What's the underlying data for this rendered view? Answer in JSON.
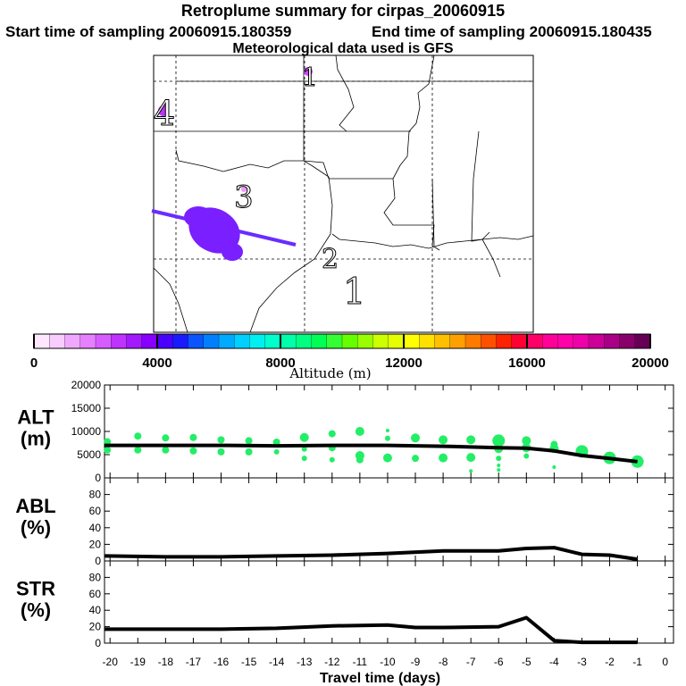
{
  "header": {
    "title": "Retroplume summary for cirpas_20060915",
    "start_label": "Start time of sampling 20060915.180359",
    "end_label": "End time of sampling 20060915.180435",
    "met_label": "Meteorological data used is GFS"
  },
  "map": {
    "day_markers": [
      "1",
      "2",
      "3",
      "4",
      "1"
    ],
    "plume_color": "#7a1fff",
    "track_color": "#6a2cff"
  },
  "colorbar": {
    "title": "Altitude (m)",
    "tick_labels": [
      "0",
      "4000",
      "8000",
      "12000",
      "16000",
      "20000"
    ],
    "colors": [
      "#ffe6ff",
      "#f8ccff",
      "#f0a8ff",
      "#e680ff",
      "#d75cff",
      "#bf33ff",
      "#a31aff",
      "#8800ff",
      "#4a00ff",
      "#1a1aff",
      "#0a55ff",
      "#0080ff",
      "#00aaff",
      "#00d0ff",
      "#00f0f0",
      "#00ffcc",
      "#00ffaa",
      "#00ff80",
      "#00ff55",
      "#33ff33",
      "#66ff00",
      "#99ff00",
      "#ccff00",
      "#e6ff00",
      "#ffff00",
      "#ffe000",
      "#ffc000",
      "#ffa000",
      "#ff7a00",
      "#ff5000",
      "#ff2200",
      "#ff0033",
      "#ff0066",
      "#ff0099",
      "#ff00aa",
      "#ee00aa",
      "#cc0099",
      "#aa0088",
      "#88006a",
      "#660055"
    ]
  },
  "chart_data": [
    {
      "type": "scatter",
      "title": "ALT (m)",
      "ylabel_line1": "ALT",
      "ylabel_line2": "(m)",
      "ylim": [
        0,
        20000
      ],
      "yticks": [
        "0",
        "5000",
        "10000",
        "15000",
        "20000"
      ],
      "marker_color": "#22ee66",
      "line_color": "#000000",
      "points": [
        {
          "x": -20.1,
          "y": 7800,
          "r": 4
        },
        {
          "x": -20.1,
          "y": 6000,
          "r": 4
        },
        {
          "x": -19,
          "y": 9000,
          "r": 4
        },
        {
          "x": -19,
          "y": 6000,
          "r": 4
        },
        {
          "x": -18,
          "y": 8600,
          "r": 4
        },
        {
          "x": -18,
          "y": 6000,
          "r": 4
        },
        {
          "x": -17,
          "y": 8700,
          "r": 4
        },
        {
          "x": -17,
          "y": 5800,
          "r": 4
        },
        {
          "x": -16,
          "y": 8200,
          "r": 4
        },
        {
          "x": -16,
          "y": 5600,
          "r": 4
        },
        {
          "x": -15,
          "y": 8000,
          "r": 4
        },
        {
          "x": -15,
          "y": 5600,
          "r": 4
        },
        {
          "x": -14,
          "y": 7700,
          "r": 4
        },
        {
          "x": -14,
          "y": 5600,
          "r": 3
        },
        {
          "x": -13,
          "y": 8700,
          "r": 5
        },
        {
          "x": -13,
          "y": 6200,
          "r": 3
        },
        {
          "x": -13,
          "y": 4200,
          "r": 3
        },
        {
          "x": -12,
          "y": 9500,
          "r": 4
        },
        {
          "x": -12,
          "y": 6500,
          "r": 4
        },
        {
          "x": -12,
          "y": 3900,
          "r": 3
        },
        {
          "x": -11,
          "y": 10000,
          "r": 5
        },
        {
          "x": -11,
          "y": 4800,
          "r": 5
        },
        {
          "x": -11,
          "y": 3900,
          "r": 4
        },
        {
          "x": -10,
          "y": 10200,
          "r": 2
        },
        {
          "x": -10,
          "y": 8500,
          "r": 3
        },
        {
          "x": -10,
          "y": 4300,
          "r": 5
        },
        {
          "x": -9,
          "y": 8600,
          "r": 5
        },
        {
          "x": -9,
          "y": 4200,
          "r": 4
        },
        {
          "x": -8,
          "y": 8200,
          "r": 5
        },
        {
          "x": -8,
          "y": 4300,
          "r": 5
        },
        {
          "x": -7,
          "y": 8200,
          "r": 5
        },
        {
          "x": -7,
          "y": 4400,
          "r": 5
        },
        {
          "x": -7,
          "y": 1500,
          "r": 2
        },
        {
          "x": -6,
          "y": 8000,
          "r": 7
        },
        {
          "x": -6,
          "y": 6300,
          "r": 5
        },
        {
          "x": -6,
          "y": 4200,
          "r": 3
        },
        {
          "x": -6,
          "y": 2700,
          "r": 2
        },
        {
          "x": -6,
          "y": 1700,
          "r": 2
        },
        {
          "x": -5,
          "y": 8000,
          "r": 5
        },
        {
          "x": -5,
          "y": 6500,
          "r": 5
        },
        {
          "x": -5,
          "y": 4700,
          "r": 3
        },
        {
          "x": -4,
          "y": 7200,
          "r": 4
        },
        {
          "x": -4,
          "y": 6300,
          "r": 5
        },
        {
          "x": -4,
          "y": 2300,
          "r": 2
        },
        {
          "x": -3,
          "y": 5700,
          "r": 7
        },
        {
          "x": -2,
          "y": 4300,
          "r": 7
        },
        {
          "x": -1,
          "y": 3500,
          "r": 7
        }
      ],
      "line": [
        {
          "x": -20.2,
          "y": 7000
        },
        {
          "x": -18,
          "y": 7000
        },
        {
          "x": -16,
          "y": 7000
        },
        {
          "x": -14,
          "y": 6900
        },
        {
          "x": -12,
          "y": 7000
        },
        {
          "x": -10,
          "y": 7000
        },
        {
          "x": -8,
          "y": 6800
        },
        {
          "x": -6,
          "y": 6500
        },
        {
          "x": -5,
          "y": 6400
        },
        {
          "x": -4,
          "y": 5800
        },
        {
          "x": -3,
          "y": 4800
        },
        {
          "x": -2,
          "y": 4200
        },
        {
          "x": -1,
          "y": 3500
        }
      ]
    },
    {
      "type": "line",
      "title": "ABL (%)",
      "ylabel_line1": "ABL",
      "ylabel_line2": "(%)",
      "ylim": [
        0,
        100
      ],
      "yticks": [
        "0",
        "20",
        "40",
        "60",
        "80"
      ],
      "line_color": "#000000",
      "line": [
        {
          "x": -20.2,
          "y": 6
        },
        {
          "x": -18,
          "y": 5
        },
        {
          "x": -16,
          "y": 5
        },
        {
          "x": -14,
          "y": 6
        },
        {
          "x": -12,
          "y": 7
        },
        {
          "x": -10,
          "y": 9
        },
        {
          "x": -8,
          "y": 12
        },
        {
          "x": -6,
          "y": 12
        },
        {
          "x": -5,
          "y": 15
        },
        {
          "x": -4,
          "y": 16
        },
        {
          "x": -3,
          "y": 8
        },
        {
          "x": -2,
          "y": 7
        },
        {
          "x": -1,
          "y": 2
        }
      ]
    },
    {
      "type": "line",
      "title": "STR (%)",
      "ylabel_line1": "STR",
      "ylabel_line2": "(%)",
      "ylim": [
        0,
        100
      ],
      "yticks": [
        "0",
        "20",
        "40",
        "60",
        "80"
      ],
      "xlabel": "Travel time (days)",
      "xlim": [
        -20.2,
        0.3
      ],
      "xticks": [
        "-20",
        "-19",
        "-18",
        "-17",
        "-16",
        "-15",
        "-14",
        "-13",
        "-12",
        "-11",
        "-10",
        "-9",
        "-8",
        "-7",
        "-6",
        "-5",
        "-4",
        "-3",
        "-2",
        "-1",
        "0"
      ],
      "line_color": "#000000",
      "line": [
        {
          "x": -20.2,
          "y": 17
        },
        {
          "x": -18,
          "y": 17
        },
        {
          "x": -16,
          "y": 17
        },
        {
          "x": -14,
          "y": 18
        },
        {
          "x": -12,
          "y": 21
        },
        {
          "x": -10,
          "y": 22
        },
        {
          "x": -9,
          "y": 19
        },
        {
          "x": -8,
          "y": 19
        },
        {
          "x": -6,
          "y": 20
        },
        {
          "x": -5,
          "y": 31
        },
        {
          "x": -4,
          "y": 3
        },
        {
          "x": -3,
          "y": 1
        },
        {
          "x": -2,
          "y": 1
        },
        {
          "x": -1,
          "y": 1
        }
      ]
    }
  ]
}
